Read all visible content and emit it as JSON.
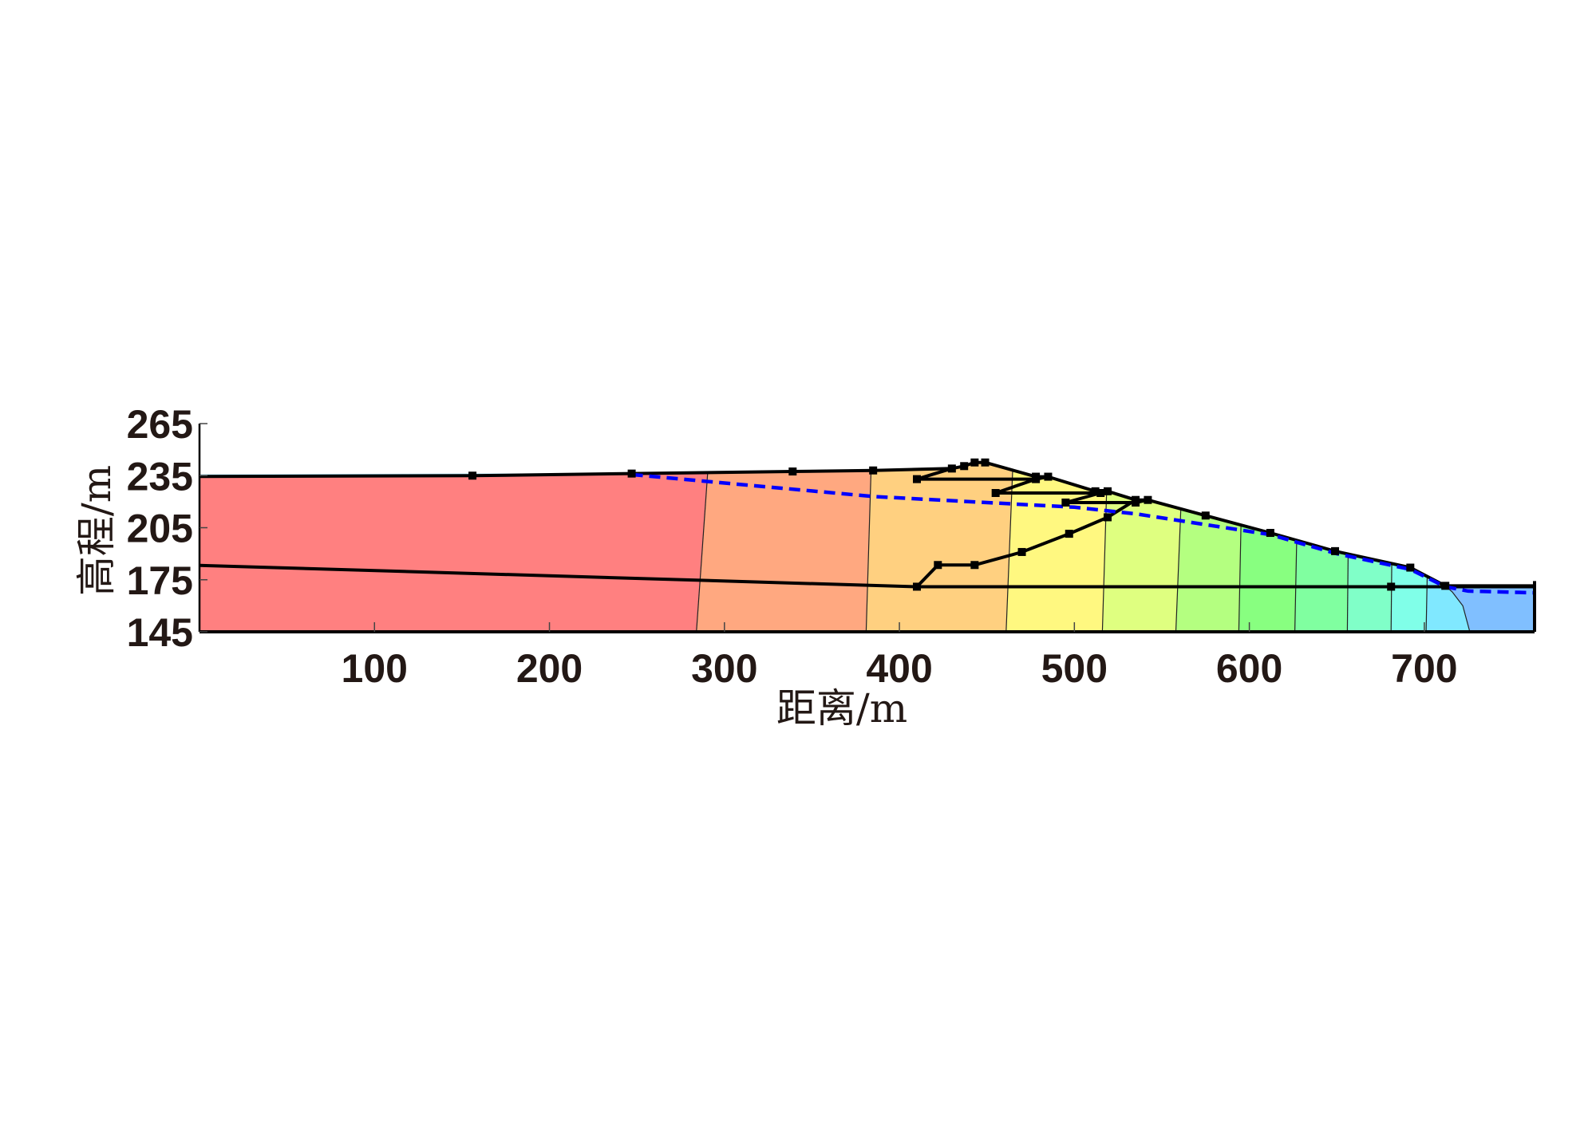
{
  "chart_data": {
    "type": "heatmap",
    "title": "",
    "xlabel": "距离/m",
    "ylabel": "高程/m",
    "xlim": [
      0,
      763
    ],
    "ylim": [
      145,
      265
    ],
    "xticks": [
      100,
      200,
      300,
      400,
      500,
      600,
      700
    ],
    "yticks": [
      145,
      175,
      205,
      235,
      265
    ],
    "grid": false,
    "legend": "none",
    "surface": [
      [
        0,
        234.5
      ],
      [
        156,
        235
      ],
      [
        247,
        236.2
      ],
      [
        339,
        237.4
      ],
      [
        385,
        238
      ],
      [
        430,
        239.1
      ],
      [
        437,
        240.5
      ],
      [
        443,
        242.6
      ],
      [
        449,
        242.6
      ],
      [
        478,
        234.4
      ],
      [
        485,
        234.4
      ],
      [
        512,
        226
      ],
      [
        519,
        226
      ],
      [
        535,
        221
      ],
      [
        542,
        221
      ],
      [
        575,
        212
      ],
      [
        612,
        202
      ],
      [
        649,
        191.5
      ],
      [
        692,
        182
      ],
      [
        712,
        171.5
      ],
      [
        763,
        171.5
      ]
    ],
    "surface_nodes": [
      [
        156,
        235
      ],
      [
        247,
        236.2
      ],
      [
        339,
        237.4
      ],
      [
        385,
        238
      ],
      [
        430,
        239.1
      ],
      [
        437,
        240.5
      ],
      [
        443,
        242.6
      ],
      [
        449,
        242.6
      ],
      [
        478,
        234.4
      ],
      [
        485,
        234.4
      ],
      [
        512,
        226
      ],
      [
        519,
        226
      ],
      [
        535,
        221
      ],
      [
        542,
        221
      ],
      [
        575,
        212
      ],
      [
        612,
        202
      ],
      [
        649,
        191.5
      ],
      [
        692,
        182
      ],
      [
        712,
        171.5
      ]
    ],
    "upstream_water": [
      [
        0,
        234.5
      ],
      [
        0,
        235.7
      ],
      [
        247,
        236.5
      ],
      [
        247,
        236.2
      ]
    ],
    "foundation_line": [
      [
        0,
        183.3
      ],
      [
        410,
        171
      ],
      [
        763,
        171
      ]
    ],
    "foundation_nodes": [
      [
        410,
        171
      ],
      [
        681,
        171
      ]
    ],
    "internal_lines": [
      [
        [
          430,
          239.1
        ],
        [
          410,
          233
        ],
        [
          478,
          233
        ],
        [
          485,
          234.4
        ]
      ],
      [
        [
          478,
          233
        ],
        [
          455,
          225
        ],
        [
          515,
          225
        ],
        [
          519,
          226
        ]
      ],
      [
        [
          515,
          225
        ],
        [
          495,
          219.5
        ],
        [
          535,
          219.5
        ],
        [
          542,
          221
        ]
      ],
      [
        [
          410,
          171
        ],
        [
          422,
          183.5
        ],
        [
          443,
          183.5
        ],
        [
          470,
          191
        ],
        [
          497,
          201.5
        ],
        [
          519,
          211
        ],
        [
          535,
          221
        ]
      ]
    ],
    "internal_nodes": [
      [
        410,
        233
      ],
      [
        455,
        225
      ],
      [
        495,
        219.5
      ],
      [
        478,
        233
      ],
      [
        515,
        225
      ],
      [
        535,
        219.5
      ],
      [
        422,
        183.5
      ],
      [
        443,
        183.5
      ],
      [
        470,
        191
      ],
      [
        497,
        201.5
      ],
      [
        519,
        211
      ]
    ],
    "phreatic_line": [
      [
        247,
        235.6
      ],
      [
        385,
        223
      ],
      [
        500,
        216.8
      ],
      [
        535,
        213
      ],
      [
        612,
        201
      ],
      [
        650,
        190
      ],
      [
        692,
        181
      ],
      [
        712,
        171
      ],
      [
        725,
        168.5
      ],
      [
        763,
        167.5
      ]
    ],
    "phreatic_color": "#0000FF",
    "contour_boundaries": [
      [
        [
          284,
          145
        ],
        [
          291,
          245
        ]
      ],
      [
        [
          381,
          145
        ],
        [
          384,
          245
        ]
      ],
      [
        [
          461,
          145
        ],
        [
          465,
          245
        ]
      ],
      [
        [
          516,
          145
        ],
        [
          519,
          245
        ]
      ],
      [
        [
          558,
          145
        ],
        [
          562,
          245
        ]
      ],
      [
        [
          594,
          145
        ],
        [
          596,
          245
        ]
      ],
      [
        [
          626,
          145
        ],
        [
          628,
          245
        ]
      ],
      [
        [
          656,
          145
        ],
        [
          657,
          245
        ]
      ],
      [
        [
          681,
          145
        ],
        [
          682,
          245
        ]
      ],
      [
        [
          701,
          145
        ],
        [
          703,
          245
        ]
      ],
      [
        [
          726,
          145
        ],
        [
          722,
          160
        ],
        [
          716,
          168
        ],
        [
          712,
          171.5
        ]
      ]
    ],
    "band_colors": [
      "#FF8080",
      "#FFA880",
      "#FFD080",
      "#FFF880",
      "#DFFF80",
      "#B4FF80",
      "#88FF80",
      "#80FFA0",
      "#80FFC8",
      "#80FFE8",
      "#80E8FF",
      "#80BFFF"
    ],
    "water_color": "#A8E4F8"
  }
}
